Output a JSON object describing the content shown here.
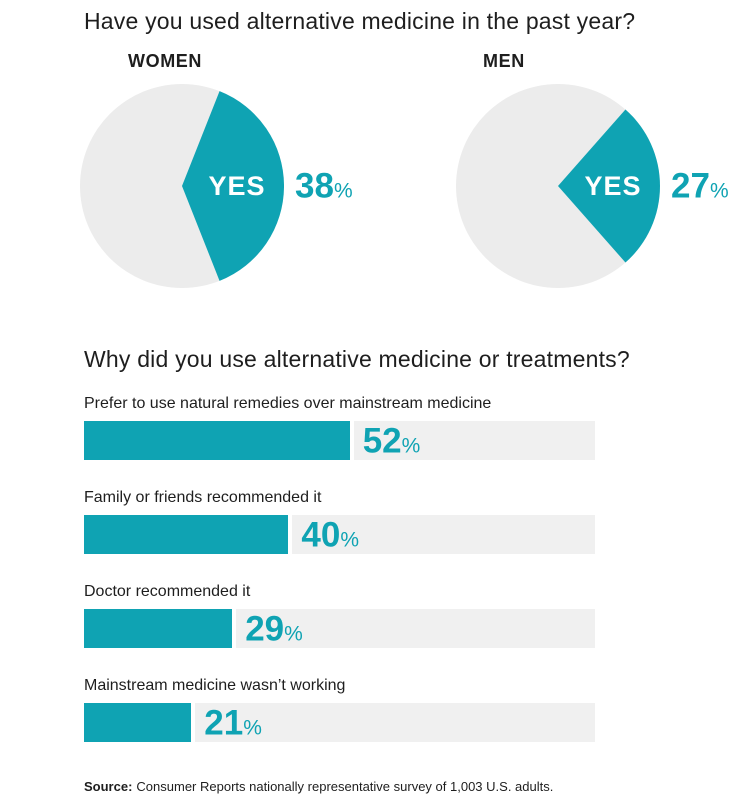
{
  "colors": {
    "accent": "#0FA3B3",
    "pie_rest": "#ECECEC",
    "bar_track": "#F0F0F0",
    "text": "#1E1E1E",
    "slice_text": "#FFFFFF"
  },
  "strings": {
    "percent_sign": "%"
  },
  "chart_data": [
    {
      "type": "pie",
      "title": "Have you used alternative medicine in the past year?",
      "legend_position": "none",
      "groups": [
        {
          "label": "WOMEN",
          "yes_label": "YES",
          "yes_percent": 38,
          "rest_percent": 62
        },
        {
          "label": "MEN",
          "yes_label": "YES",
          "yes_percent": 27,
          "rest_percent": 73
        }
      ]
    },
    {
      "type": "bar",
      "title": "Why did you use alternative medicine or treatments?",
      "orientation": "horizontal",
      "xlim": [
        0,
        100
      ],
      "unit": "%",
      "grid": false,
      "legend_position": "none",
      "categories": [
        "Prefer to use natural remedies over mainstream medicine",
        "Family or friends recommended it",
        "Doctor recommended it",
        "Mainstream medicine wasn’t working"
      ],
      "values": [
        52,
        40,
        29,
        21
      ]
    }
  ],
  "source": {
    "prefix": "Source:",
    "text": "Consumer Reports nationally representative survey of 1,003 U.S. adults."
  }
}
